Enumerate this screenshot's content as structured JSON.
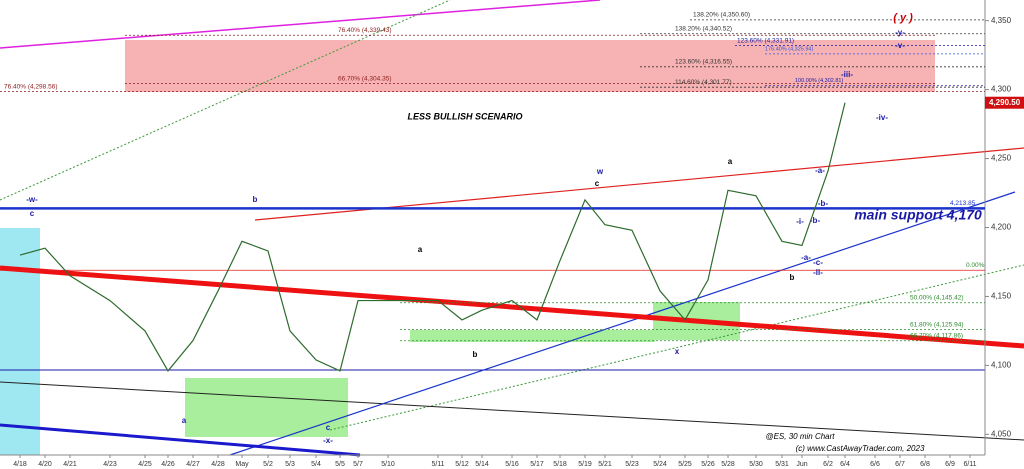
{
  "chart_data": {
    "type": "line",
    "title": "LESS BULLISH SCENARIO",
    "categories": [
      "4/18",
      "4/20",
      "4/21",
      "4/23",
      "4/25",
      "4/26",
      "4/27",
      "4/28",
      "May",
      "5/2",
      "5/3",
      "5/4",
      "5/5",
      "5/7",
      "5/10",
      "5/11",
      "5/12",
      "5/14",
      "5/16",
      "5/17",
      "5/18",
      "5/19",
      "5/21",
      "5/23",
      "5/24",
      "5/25",
      "5/26",
      "5/28",
      "5/30",
      "5/31",
      "Jun",
      "6/2",
      "6/4",
      "6/6",
      "6/7",
      "6/8",
      "6/9",
      "6/11"
    ],
    "series": [
      {
        "name": "ES",
        "color": "#2e6b2e",
        "values": [
          4180,
          4185,
          4165,
          4147,
          4125,
          4096,
          4118,
          4154,
          4190,
          4183,
          4125,
          4104,
          4096,
          4147,
          4147,
          4147,
          4133,
          4140,
          4147,
          4133,
          4176,
          4220,
          4202,
          4198,
          4154,
          4133,
          4162,
          4227,
          4223,
          4190,
          4187,
          4241,
          4290.5,
          null,
          null,
          null,
          null,
          null
        ]
      }
    ],
    "ylim": [
      4035,
      4365
    ],
    "yticks": [
      {
        "value": 4050,
        "label": "4,050"
      },
      {
        "value": 4100,
        "label": "4,100"
      },
      {
        "value": 4150,
        "label": "4,150"
      },
      {
        "value": 4200,
        "label": "4,200"
      },
      {
        "value": 4250,
        "label": "4,250"
      },
      {
        "value": 4300,
        "label": "4,300"
      },
      {
        "value": 4350,
        "label": "4,350"
      }
    ],
    "last_price": {
      "value": 4290.5,
      "label": "4,290.50"
    },
    "levels": [
      {
        "label": "138.20% (4,350.60)",
        "value": 4350.6,
        "color": "#333333"
      },
      {
        "label": "76.40% (4,339.43)",
        "value": 4339.43,
        "color": "#8b1a1a"
      },
      {
        "label": "138.20% (4,340.52)",
        "value": 4340.52,
        "color": "#333333"
      },
      {
        "label": "123.60% (4,331.91)",
        "value": 4331.91,
        "color": "#1a1aa6"
      },
      {
        "label": "176.40% (4,325.94)",
        "value": 4325.94,
        "color": "#3355dd"
      },
      {
        "label": "123.60% (4,316.55)",
        "value": 4316.55,
        "color": "#333333"
      },
      {
        "label": "66.70% (4,304.35)",
        "value": 4304.35,
        "color": "#8b1a1a"
      },
      {
        "label": "114.60% (4,301.77)",
        "value": 4301.77,
        "color": "#333333"
      },
      {
        "label": "100.00% (4,302.81)",
        "value": 4302.81,
        "color": "#1a1aa6"
      },
      {
        "label": "76.40% (4,298.56)",
        "value": 4298.56,
        "color": "#8b1a1a"
      },
      {
        "label": "4,213.85",
        "value": 4213.85,
        "color": "#1a33cc"
      },
      {
        "label": "0.00%",
        "value": 4169,
        "color": "#2e8b2e"
      },
      {
        "label": "50.00% (4,145.42)",
        "value": 4145.42,
        "color": "#2e8b2e"
      },
      {
        "label": "61.80% (4,125.94)",
        "value": 4125.94,
        "color": "#2e8b2e"
      },
      {
        "label": "66.70% (4,117.86)",
        "value": 4117.86,
        "color": "#2e8b2e"
      }
    ],
    "annotations": [
      {
        "text": "-w-",
        "color": "#1a1aa6"
      },
      {
        "text": "c",
        "color": "#1a1aa6"
      },
      {
        "text": "b",
        "color": "#1a1aa6"
      },
      {
        "text": "a",
        "color": "#000000"
      },
      {
        "text": "b",
        "color": "#000000"
      },
      {
        "text": "a",
        "color": "#1a1aa6"
      },
      {
        "text": "c",
        "color": "#1a1aa6"
      },
      {
        "text": "-x-",
        "color": "#1a1aa6"
      },
      {
        "text": "w",
        "color": "#1a1aa6"
      },
      {
        "text": "c",
        "color": "#000000"
      },
      {
        "text": "x",
        "color": "#1a1aa6"
      },
      {
        "text": "a",
        "color": "#000000"
      },
      {
        "text": "b",
        "color": "#000000"
      },
      {
        "text": "-i-",
        "color": "#1a1aa6"
      },
      {
        "text": "-b-",
        "color": "#1a1aa6"
      },
      {
        "text": "-a-",
        "color": "#1a1aa6"
      },
      {
        "text": "-c-",
        "color": "#1a1aa6"
      },
      {
        "text": "-ii-",
        "color": "#1a1aa6"
      },
      {
        "text": "-a-",
        "color": "#1a1aa6"
      },
      {
        "text": "-b-",
        "color": "#1a1aa6"
      },
      {
        "text": "-iii-",
        "color": "#1a1aa6"
      },
      {
        "text": "-iv-",
        "color": "#1a1aa6"
      },
      {
        "text": "-v-",
        "color": "#1a1aa6"
      },
      {
        "text": "-y-",
        "color": "#1a1aa6"
      },
      {
        "text": "( y )",
        "color": "#cc0000"
      },
      {
        "text": "main support 4,170",
        "color": "#1a1aa6"
      },
      {
        "text": "@ES, 30 min Chart",
        "color": "#000000"
      },
      {
        "text": "(c) www.CastAwayTrader.com, 2023",
        "color": "#000000"
      }
    ]
  }
}
